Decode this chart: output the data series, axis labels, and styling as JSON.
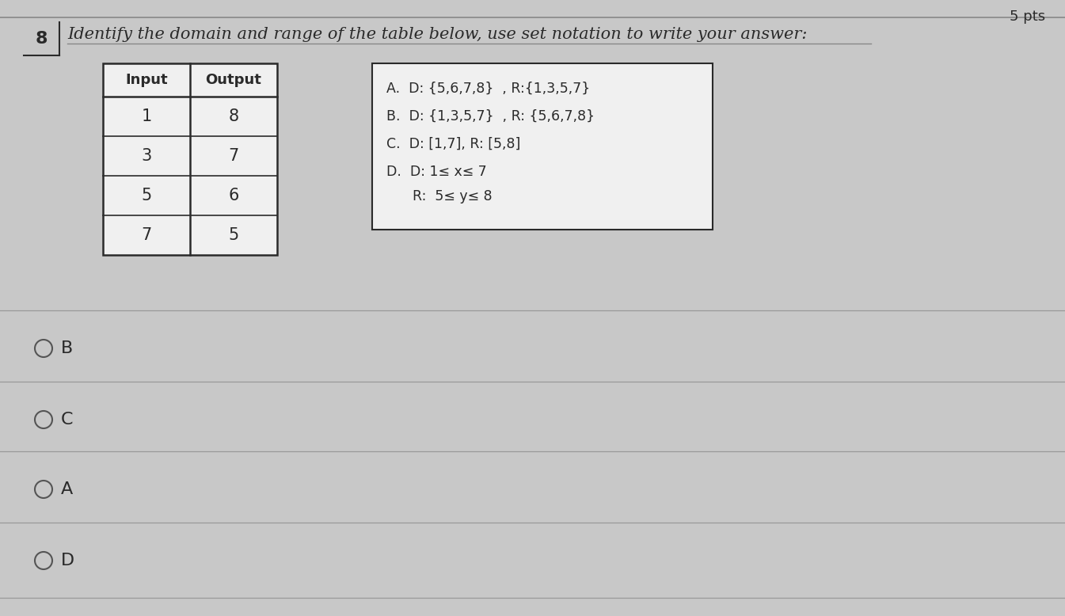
{
  "pts_text": "5 pts",
  "question_num": "8",
  "question_text": "Identify the domain and range of the table below, use set notation to write your answer:",
  "table_headers": [
    "Input",
    "Output"
  ],
  "table_data": [
    [
      1,
      8
    ],
    [
      3,
      7
    ],
    [
      5,
      6
    ],
    [
      7,
      5
    ]
  ],
  "opt_A": "A.  D: {5,6,7,8}  , R:{1,3,5,7}",
  "opt_B": "B.  D: {1,3,5,7}  , R: {5,6,7,8}",
  "opt_C": "C.  D: [1,7], R: [5,8]",
  "opt_D1": "D.  D: 1≤ x≤ 7",
  "opt_D2": "      R:  5≤ y≤ 8",
  "answer_choices": [
    "B",
    "C",
    "A",
    "D"
  ],
  "bg_color": "#c8c8c8",
  "white_color": "#f0f0f0",
  "dark_color": "#2a2a2a",
  "line_color": "#555555",
  "sep_line_color": "#999999"
}
